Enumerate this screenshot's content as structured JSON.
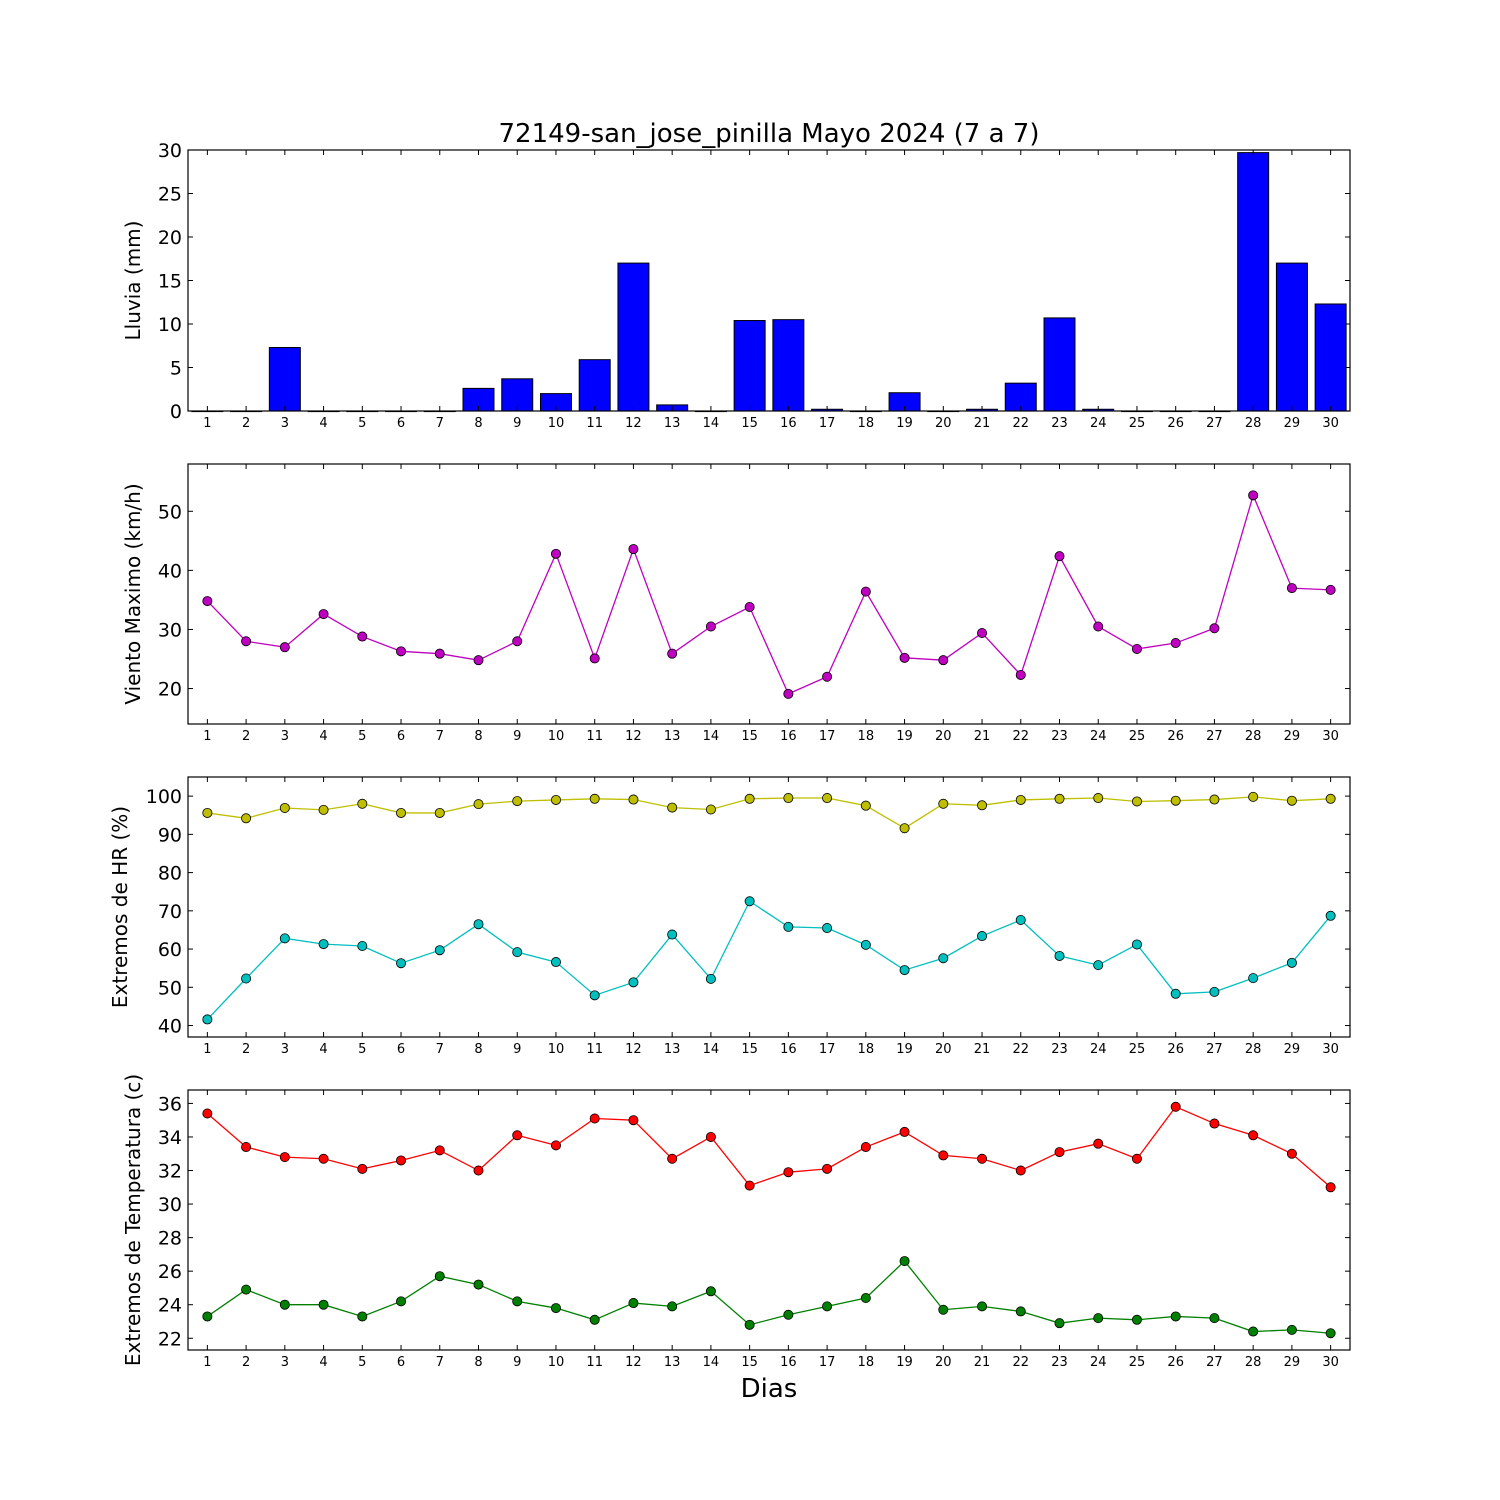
{
  "figure": {
    "title": "72149-san_jose_pinilla Mayo 2024  (7 a 7)",
    "xlabel": "Dias"
  },
  "chart_data": [
    {
      "type": "bar",
      "ylabel": "Lluvia (mm)",
      "ylim": [
        0,
        30
      ],
      "yticks": [
        0,
        5,
        10,
        15,
        20,
        25,
        30
      ],
      "xlim": [
        0.5,
        30.5
      ],
      "categories": [
        1,
        2,
        3,
        4,
        5,
        6,
        7,
        8,
        9,
        10,
        11,
        12,
        13,
        14,
        15,
        16,
        17,
        18,
        19,
        20,
        21,
        22,
        23,
        24,
        25,
        26,
        27,
        28,
        29,
        30
      ],
      "series": [
        {
          "color": "#0000ff",
          "values": [
            0,
            0,
            7.3,
            0,
            0,
            0,
            0,
            2.6,
            3.7,
            2.0,
            5.9,
            17.0,
            0.7,
            0,
            10.4,
            10.5,
            0.2,
            0,
            2.1,
            0,
            0.2,
            3.2,
            10.7,
            0.2,
            0,
            0,
            0,
            29.7,
            17.0,
            12.3
          ]
        }
      ]
    },
    {
      "type": "line",
      "ylabel": "Viento Maximo (km/h)",
      "ylim": [
        14,
        58
      ],
      "yticks": [
        20,
        30,
        40,
        50
      ],
      "xlim": [
        0.5,
        30.5
      ],
      "x": [
        1,
        2,
        3,
        4,
        5,
        6,
        7,
        8,
        9,
        10,
        11,
        12,
        13,
        14,
        15,
        16,
        17,
        18,
        19,
        20,
        21,
        22,
        23,
        24,
        25,
        26,
        27,
        28,
        29,
        30
      ],
      "series": [
        {
          "color": "#c000c0",
          "values": [
            34.8,
            28.0,
            27.0,
            32.6,
            28.8,
            26.3,
            25.9,
            24.8,
            28.0,
            42.8,
            25.1,
            43.6,
            25.9,
            30.5,
            33.8,
            19.1,
            22.0,
            36.4,
            25.2,
            24.8,
            29.4,
            22.3,
            42.4,
            30.5,
            26.7,
            27.7,
            30.2,
            52.7,
            37.0,
            36.7
          ]
        }
      ]
    },
    {
      "type": "line",
      "ylabel": "Extremos de HR (%)",
      "ylim": [
        37,
        105
      ],
      "yticks": [
        40,
        50,
        60,
        70,
        80,
        90,
        100
      ],
      "xlim": [
        0.5,
        30.5
      ],
      "x": [
        1,
        2,
        3,
        4,
        5,
        6,
        7,
        8,
        9,
        10,
        11,
        12,
        13,
        14,
        15,
        16,
        17,
        18,
        19,
        20,
        21,
        22,
        23,
        24,
        25,
        26,
        27,
        28,
        29,
        30
      ],
      "series": [
        {
          "color": "#bfbf00",
          "values": [
            95.6,
            94.2,
            96.9,
            96.4,
            98.0,
            95.6,
            95.6,
            97.9,
            98.7,
            99.0,
            99.3,
            99.1,
            97.0,
            96.5,
            99.3,
            99.5,
            99.5,
            97.5,
            91.6,
            98.0,
            97.6,
            99.0,
            99.3,
            99.5,
            98.6,
            98.8,
            99.1,
            99.8,
            98.8,
            99.3
          ]
        },
        {
          "color": "#00bfbf",
          "values": [
            41.6,
            52.3,
            62.8,
            61.3,
            60.8,
            56.3,
            59.7,
            66.5,
            59.2,
            56.6,
            47.9,
            51.3,
            63.8,
            52.2,
            72.5,
            65.8,
            65.5,
            61.1,
            54.5,
            57.6,
            63.4,
            67.6,
            58.2,
            55.8,
            61.2,
            48.3,
            48.8,
            52.4,
            56.4,
            68.7
          ]
        }
      ]
    },
    {
      "type": "line",
      "ylabel": "Extremos de Temperatura (c)",
      "ylim": [
        21.3,
        36.8
      ],
      "yticks": [
        22,
        24,
        26,
        28,
        30,
        32,
        34,
        36
      ],
      "xlim": [
        0.5,
        30.5
      ],
      "x": [
        1,
        2,
        3,
        4,
        5,
        6,
        7,
        8,
        9,
        10,
        11,
        12,
        13,
        14,
        15,
        16,
        17,
        18,
        19,
        20,
        21,
        22,
        23,
        24,
        25,
        26,
        27,
        28,
        29,
        30
      ],
      "series": [
        {
          "color": "#ff0000",
          "values": [
            35.4,
            33.4,
            32.8,
            32.7,
            32.1,
            32.6,
            33.2,
            32.0,
            34.1,
            33.5,
            35.1,
            35.0,
            32.7,
            34.0,
            31.1,
            31.9,
            32.1,
            33.4,
            34.3,
            32.9,
            32.7,
            32.0,
            33.1,
            33.6,
            32.7,
            35.8,
            34.8,
            34.1,
            33.0,
            31.0
          ]
        },
        {
          "color": "#008000",
          "values": [
            23.3,
            24.9,
            24.0,
            24.0,
            23.3,
            24.2,
            25.7,
            25.2,
            24.2,
            23.8,
            23.1,
            24.1,
            23.9,
            24.8,
            22.8,
            23.4,
            23.9,
            24.4,
            26.6,
            23.7,
            23.9,
            23.6,
            22.9,
            23.2,
            23.1,
            23.3,
            23.2,
            22.4,
            22.5,
            22.3
          ]
        }
      ]
    }
  ]
}
